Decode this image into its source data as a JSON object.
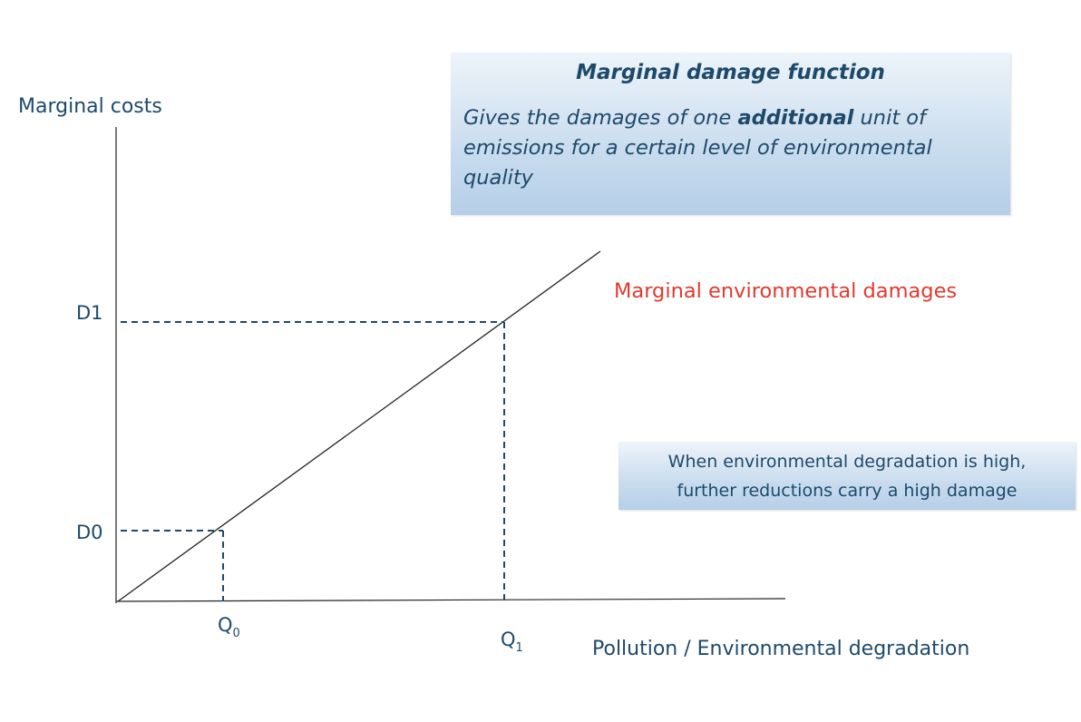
{
  "y_axis_label": "Marginal costs",
  "x_axis_label": "Pollution / Environmental degradation",
  "curve_label": "Marginal environmental damages",
  "y_markers": [
    "D1",
    "D0"
  ],
  "x_markers": [
    {
      "label": "Q",
      "subscript": "0"
    },
    {
      "label": "Q",
      "subscript": "1"
    }
  ],
  "definition_box": {
    "title": "Marginal damage function",
    "text": [
      "Gives the damages of one ",
      "additional",
      " unit of emissions for a certain level of environmental quality"
    ]
  },
  "note_box": {
    "lines": [
      "When environmental degradation is high,",
      "further reductions carry a high damage"
    ]
  }
}
